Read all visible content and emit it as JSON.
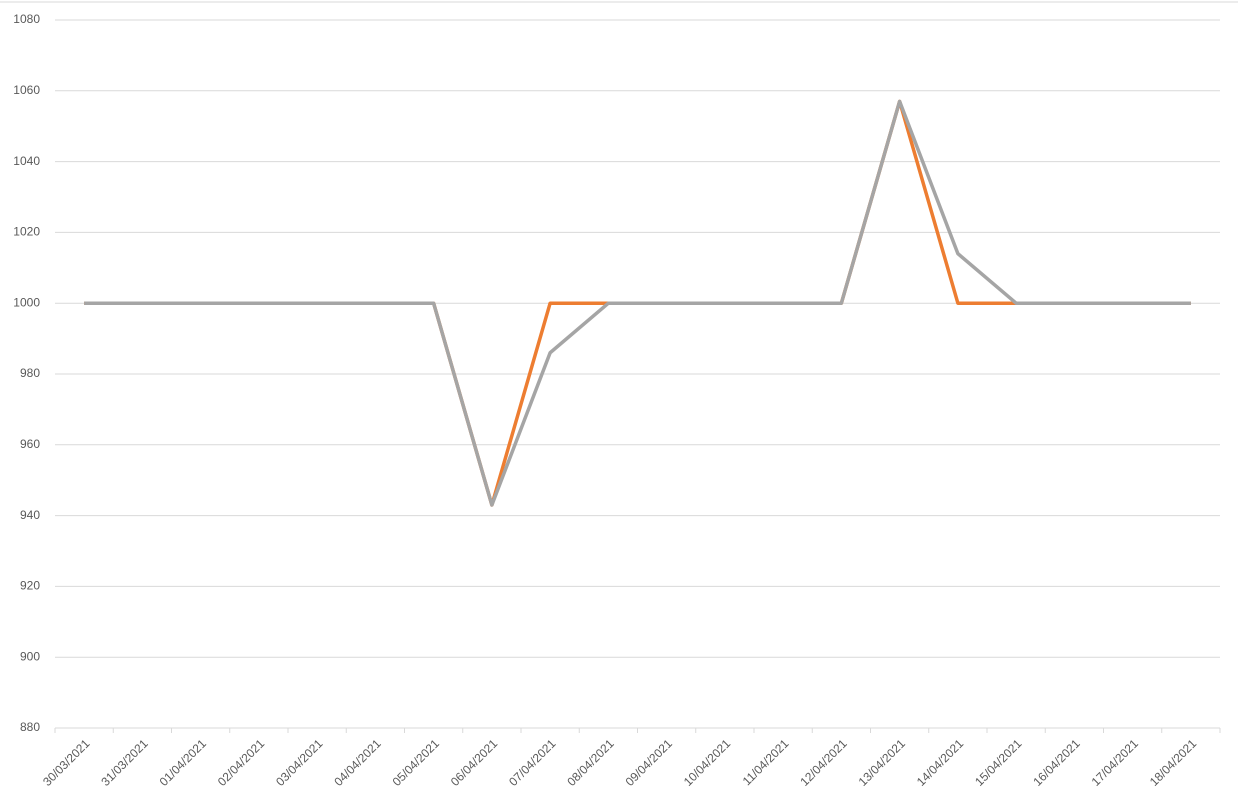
{
  "chart_data": {
    "type": "line",
    "categories": [
      "30/03/2021",
      "31/03/2021",
      "01/04/2021",
      "02/04/2021",
      "03/04/2021",
      "04/04/2021",
      "05/04/2021",
      "06/04/2021",
      "07/04/2021",
      "08/04/2021",
      "09/04/2021",
      "10/04/2021",
      "11/04/2021",
      "12/04/2021",
      "13/04/2021",
      "14/04/2021",
      "15/04/2021",
      "16/04/2021",
      "17/04/2021",
      "18/04/2021"
    ],
    "series": [
      {
        "color": "#ed7d31",
        "values": [
          1000,
          1000,
          1000,
          1000,
          1000,
          1000,
          1000,
          943,
          1000,
          1000,
          1000,
          1000,
          1000,
          1000,
          1057,
          1000,
          1000,
          1000,
          1000,
          1000
        ]
      },
      {
        "color": "#a5a5a5",
        "values": [
          1000,
          1000,
          1000,
          1000,
          1000,
          1000,
          1000,
          943,
          986,
          1000,
          1000,
          1000,
          1000,
          1000,
          1057,
          1014,
          1000,
          1000,
          1000,
          1000
        ]
      }
    ],
    "ylim": [
      880,
      1080
    ],
    "yticks": [
      880,
      900,
      920,
      940,
      960,
      980,
      1000,
      1020,
      1040,
      1060,
      1080
    ],
    "grid": true
  }
}
